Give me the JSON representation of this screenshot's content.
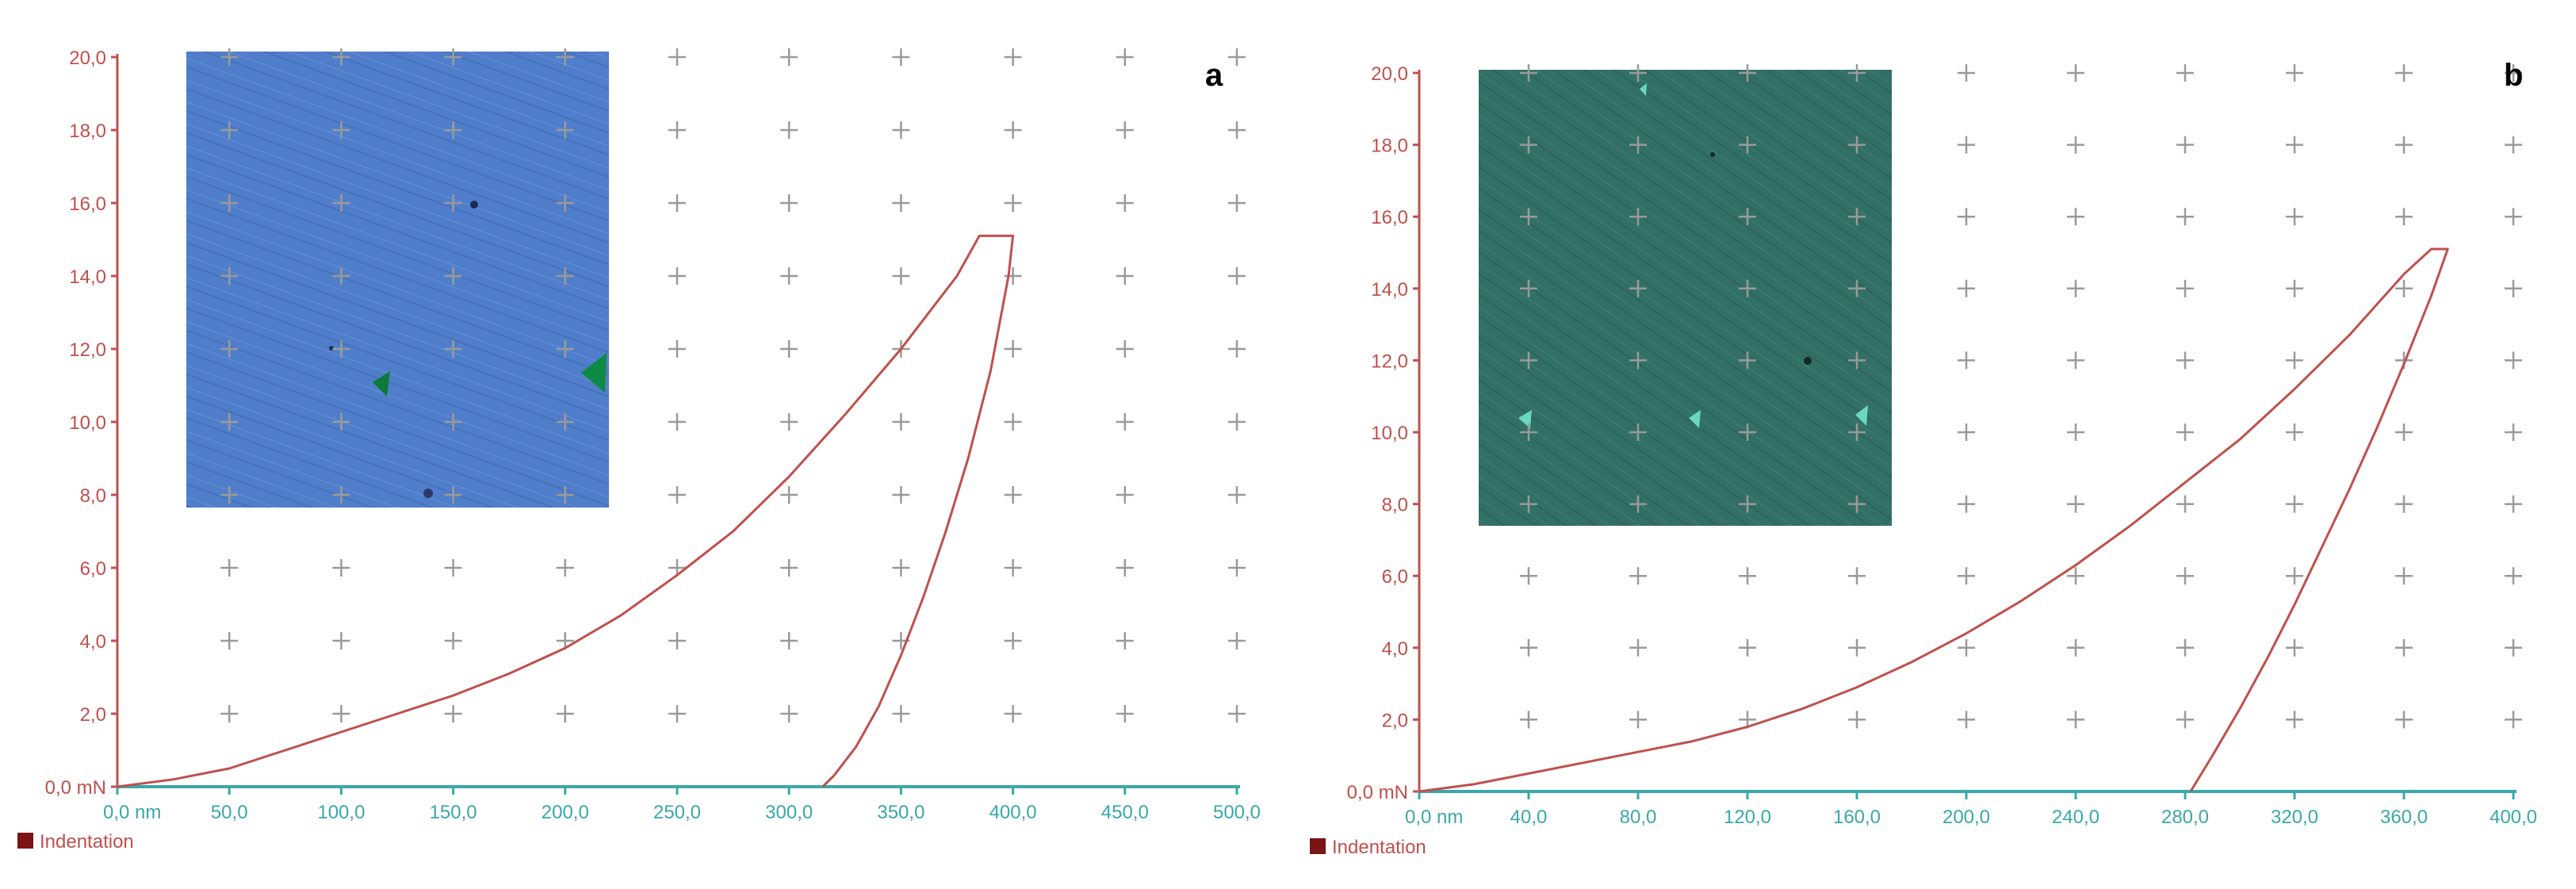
{
  "chart_data": [
    {
      "type": "line",
      "panel_label": "a",
      "xlim": [
        0,
        500
      ],
      "ylim": [
        0,
        20
      ],
      "x_ticks": [
        "0,0 nm",
        "50,0",
        "100,0",
        "150,0",
        "200,0",
        "250,0",
        "300,0",
        "350,0",
        "400,0",
        "450,0",
        "500,0"
      ],
      "y_ticks": [
        "0,0 mN",
        "2,0",
        "4,0",
        "6,0",
        "8,0",
        "10,0",
        "12,0",
        "14,0",
        "16,0",
        "18,0",
        "20,0"
      ],
      "legend": "Indentation",
      "grid": "plus-markers",
      "inset": "optical micrograph (blue)",
      "series": [
        {
          "name": "Indentation",
          "color": "#c0504d",
          "x": [
            0,
            25,
            50,
            75,
            100,
            125,
            150,
            175,
            200,
            225,
            250,
            275,
            300,
            325,
            350,
            375,
            385,
            400,
            398,
            390,
            380,
            370,
            360,
            350,
            340,
            330,
            320,
            315
          ],
          "y": [
            0,
            0.2,
            0.5,
            1.0,
            1.5,
            2.0,
            2.5,
            3.1,
            3.8,
            4.7,
            5.8,
            7.0,
            8.5,
            10.2,
            12.0,
            14.0,
            15.1,
            15.1,
            14.0,
            11.4,
            9.0,
            7.0,
            5.2,
            3.6,
            2.2,
            1.1,
            0.3,
            0.0
          ]
        }
      ]
    },
    {
      "type": "line",
      "panel_label": "b",
      "xlim": [
        0,
        400
      ],
      "ylim": [
        0,
        20
      ],
      "x_ticks": [
        "0,0 nm",
        "40,0",
        "80,0",
        "120,0",
        "160,0",
        "200,0",
        "240,0",
        "280,0",
        "320,0",
        "360,0",
        "400,0"
      ],
      "y_ticks": [
        "0,0 mN",
        "2,0",
        "4,0",
        "6,0",
        "8,0",
        "10,0",
        "12,0",
        "14,0",
        "16,0",
        "18,0",
        "20,0"
      ],
      "legend": "Indentation",
      "grid": "plus-markers",
      "inset": "optical micrograph (green)",
      "series": [
        {
          "name": "Indentation",
          "color": "#c0504d",
          "x": [
            0,
            20,
            40,
            60,
            80,
            100,
            120,
            140,
            160,
            180,
            200,
            220,
            240,
            260,
            280,
            300,
            320,
            340,
            360,
            370,
            376,
            370,
            360,
            350,
            340,
            330,
            320,
            310,
            300,
            290,
            282
          ],
          "y": [
            0,
            0.2,
            0.5,
            0.8,
            1.1,
            1.4,
            1.8,
            2.3,
            2.9,
            3.6,
            4.4,
            5.3,
            6.3,
            7.4,
            8.6,
            9.8,
            11.2,
            12.7,
            14.4,
            15.1,
            15.1,
            13.8,
            11.9,
            10.1,
            8.4,
            6.8,
            5.2,
            3.7,
            2.3,
            1.0,
            0.0
          ]
        }
      ]
    }
  ],
  "legend_swatch_color": "#7b1414",
  "axis_colors": {
    "y_axis": "#c0504d",
    "x_axis": "#3aa8a8",
    "curve": "#c0504d"
  }
}
